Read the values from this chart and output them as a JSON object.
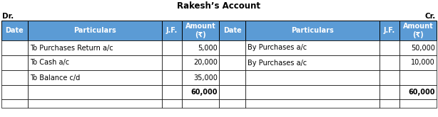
{
  "title": "Rakesh’s Account",
  "dr_label": "Dr.",
  "cr_label": "Cr.",
  "header_bg": "#5B9BD5",
  "header_fg": "#FFFFFF",
  "border_color": "#000000",
  "header_row": [
    "Date",
    "Particulars",
    "J.F.",
    "Amount\n(₹)",
    "Date",
    "Particulars",
    "J.F.",
    "Amount\n(₹)"
  ],
  "left_rows": [
    [
      "",
      "To Purchases Return a/c",
      "",
      "5,000"
    ],
    [
      "",
      "To Cash a/c",
      "",
      "20,000"
    ],
    [
      "",
      "To Balance c/d",
      "",
      "35,000"
    ]
  ],
  "right_rows": [
    [
      "",
      "By Purchases a/c",
      "",
      "50,000"
    ],
    [
      "",
      "By Purchases a/c",
      "",
      "10,000"
    ],
    [
      "",
      "",
      "",
      ""
    ]
  ],
  "total_row_left": [
    "",
    "",
    "",
    "60,000"
  ],
  "total_row_right": [
    "",
    "",
    "",
    "60,000"
  ],
  "figsize": [
    6.14,
    1.65
  ],
  "dpi": 100
}
